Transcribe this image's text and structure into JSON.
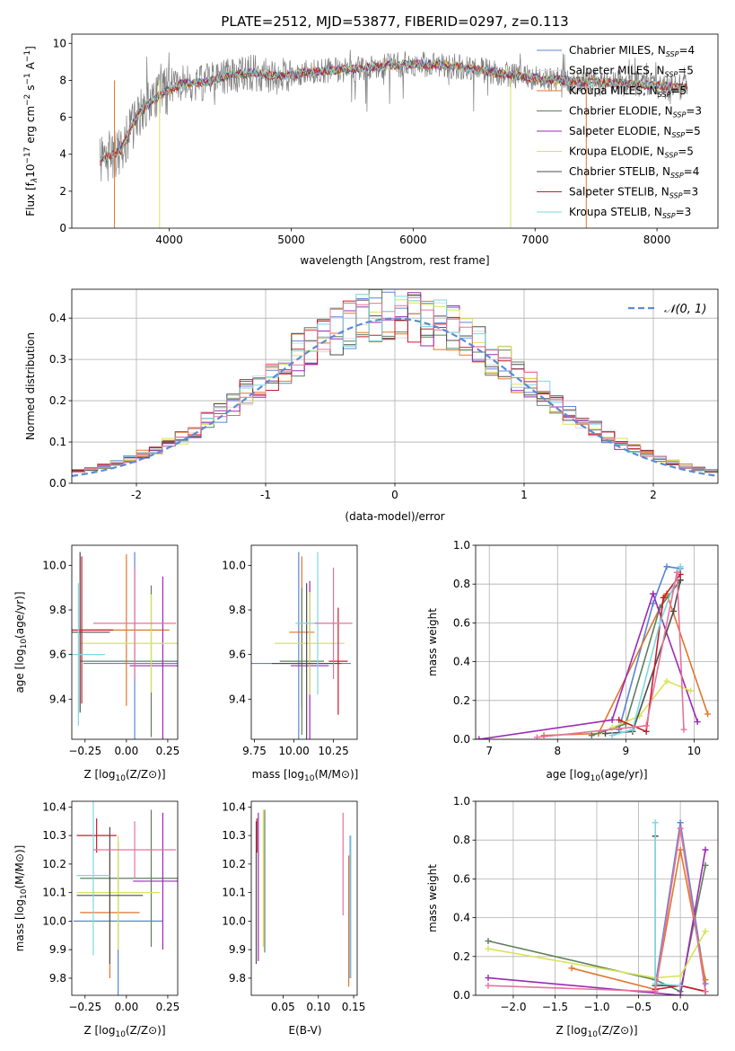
{
  "colors": {
    "Chabrier MILES": "#5b84d6",
    "Salpeter MILES": "#dcdcdc",
    "Kroupa MILES": "#e0772d",
    "Chabrier ELODIE": "#5f7f5f",
    "Salpeter ELODIE": "#9b2ab4",
    "Kroupa ELODIE": "#d8e35c",
    "Chabrier STELIB": "#4d4d4d",
    "Salpeter STELIB": "#c71c2a",
    "Kroupa STELIB": "#7fd7df",
    "pink": "#e5749a",
    "gauss": "#5b8bd6"
  },
  "chart_data": [
    {
      "type": "line",
      "title": "PLATE=2512, MJD=53877, FIBERID=0297, z=0.113",
      "xlabel": "wavelength [Angstrom, rest frame]",
      "ylabel": "Flux [f_λ 10^-17 erg cm^-2 s^-1 A^-1]",
      "ylabel_parts": {
        "a": "Flux [f",
        "b": "λ",
        "c": "10",
        "d": "−17",
        "e": " erg cm",
        "f": "−2",
        "g": " s",
        "h": "−1",
        "i": " A",
        "j": "−1",
        "k": "]"
      },
      "xlim": [
        3200,
        8500
      ],
      "ylim": [
        0,
        10.5
      ],
      "xticks": [
        4000,
        5000,
        6000,
        7000,
        8000
      ],
      "yticks": [
        0,
        2,
        4,
        6,
        8,
        10
      ],
      "grid": false,
      "legend": "top-right",
      "legend_entries": [
        {
          "name": "Chabrier MILES, N",
          "n": "4"
        },
        {
          "name": "Salpeter MILES, N",
          "n": "5"
        },
        {
          "name": "Kroupa MILES, N",
          "n": "5"
        },
        {
          "name": "Chabrier ELODIE, N",
          "n": "3"
        },
        {
          "name": "Salpeter ELODIE, N",
          "n": "5"
        },
        {
          "name": "Kroupa ELODIE, N",
          "n": "5"
        },
        {
          "name": "Chabrier STELIB, N",
          "n": "4"
        },
        {
          "name": "Salpeter STELIB, N",
          "n": "3"
        },
        {
          "name": "Kroupa STELIB, N",
          "n": "3"
        }
      ],
      "ssp_sub": "SSP",
      "continuum_knots": [
        [
          3430,
          3.6
        ],
        [
          3600,
          4.2
        ],
        [
          3700,
          5.6
        ],
        [
          3800,
          6.6
        ],
        [
          3950,
          7.3
        ],
        [
          4100,
          7.8
        ],
        [
          4300,
          7.9
        ],
        [
          4500,
          8.3
        ],
        [
          4700,
          8.4
        ],
        [
          4900,
          8.2
        ],
        [
          5200,
          8.5
        ],
        [
          5500,
          8.6
        ],
        [
          5800,
          8.8
        ],
        [
          6000,
          8.9
        ],
        [
          6300,
          8.8
        ],
        [
          6600,
          8.5
        ],
        [
          6900,
          8.2
        ],
        [
          7200,
          8.0
        ],
        [
          7500,
          7.9
        ],
        [
          7800,
          7.8
        ],
        [
          8000,
          7.7
        ],
        [
          8250,
          7.6
        ]
      ]
    },
    {
      "type": "line",
      "xlabel": "(data-model)/error",
      "ylabel": "Normed distribution",
      "xlim": [
        -2.5,
        2.5
      ],
      "ylim": [
        0,
        0.47
      ],
      "xticks": [
        -2,
        -1,
        0,
        1,
        2
      ],
      "yticks": [
        0.0,
        0.1,
        0.2,
        0.3,
        0.4
      ],
      "grid": true,
      "legend": "top-right",
      "legend_entry": "𝒩(0, 1)",
      "bin_width": 0.1
    },
    {
      "type": "scatter",
      "xlabel": "Z [log10(Z/Z⊙)]",
      "ylabel": "age [log10(age/yr)]",
      "xlim": [
        -0.33,
        0.31
      ],
      "ylim": [
        9.22,
        10.09
      ],
      "xticks": [
        -0.25,
        0.0,
        0.25
      ],
      "xticklabels": [
        "−0.25",
        "0.00",
        "0.25"
      ],
      "yticks": [
        9.4,
        9.6,
        9.8,
        10.0
      ],
      "points": [
        {
          "model": "Chabrier MILES",
          "x": 0.05,
          "y": 9.56,
          "xerr": 0.31,
          "yerr": 0.5
        },
        {
          "model": "Kroupa MILES",
          "x": 0.0,
          "y": 9.71,
          "xerr": 0.26,
          "yerr": 0.34
        },
        {
          "model": "Chabrier ELODIE",
          "x": 0.15,
          "y": 9.57,
          "xerr": 0.43,
          "yerr": 0.34
        },
        {
          "model": "Salpeter ELODIE",
          "x": 0.22,
          "y": 9.55,
          "xerr": 0.2,
          "yerr": 0.4
        },
        {
          "model": "Kroupa ELODIE",
          "x": 0.15,
          "y": 9.65,
          "xerr": 0.43,
          "yerr": 0.22
        },
        {
          "model": "Chabrier STELIB",
          "x": -0.28,
          "y": 9.7,
          "xerr": 0.18,
          "yerr": 0.36
        },
        {
          "model": "Salpeter STELIB",
          "x": -0.27,
          "y": 9.71,
          "xerr": 0.19,
          "yerr": 0.33
        },
        {
          "model": "Kroupa STELIB",
          "x": -0.29,
          "y": 9.6,
          "xerr": 0.16,
          "yerr": 0.32
        },
        {
          "model": "pink",
          "x": 0.05,
          "y": 9.74,
          "xerr": 0.25,
          "yerr": 0.25
        }
      ]
    },
    {
      "type": "scatter",
      "xlabel": "mass [log10(M/M⊙)]",
      "xlim": [
        9.73,
        10.4
      ],
      "ylim": [
        9.22,
        10.09
      ],
      "xticks": [
        9.75,
        10.0,
        10.25
      ],
      "xticklabels": [
        "9.75",
        "10.00",
        "10.25"
      ],
      "yticks": [
        9.4,
        9.6,
        9.8,
        10.0
      ],
      "points": [
        {
          "model": "Chabrier MILES",
          "x": 10.03,
          "y": 9.56,
          "xerr": 0.33,
          "yerr": 0.5
        },
        {
          "model": "Kroupa MILES",
          "x": 10.05,
          "y": 9.7,
          "xerr": 0.08,
          "yerr": 0.34
        },
        {
          "model": "Chabrier ELODIE",
          "x": 10.05,
          "y": 9.57,
          "xerr": 0.14,
          "yerr": 0.33
        },
        {
          "model": "Salpeter ELODIE",
          "x": 10.1,
          "y": 9.55,
          "xerr": 0.12,
          "yerr": 0.38
        },
        {
          "model": "Kroupa ELODIE",
          "x": 10.1,
          "y": 9.65,
          "xerr": 0.22,
          "yerr": 0.23
        },
        {
          "model": "Chabrier STELIB",
          "x": 10.08,
          "y": 9.56,
          "xerr": 0.22,
          "yerr": 0.36
        },
        {
          "model": "Salpeter STELIB",
          "x": 10.28,
          "y": 9.57,
          "xerr": 0.06,
          "yerr": 0.24
        },
        {
          "model": "Kroupa STELIB",
          "x": 10.15,
          "y": 9.74,
          "xerr": 0.14,
          "yerr": 0.32
        },
        {
          "model": "pink",
          "x": 10.25,
          "y": 9.74,
          "xerr": 0.12,
          "yerr": 0.25
        }
      ]
    },
    {
      "type": "line",
      "xlabel": "age [log10(age/yr)]",
      "ylabel": "mass weight",
      "xlim": [
        6.8,
        10.35
      ],
      "ylim": [
        0,
        1.0
      ],
      "xticks": [
        7,
        8,
        9,
        10
      ],
      "yticks": [
        0.0,
        0.2,
        0.4,
        0.6,
        0.8,
        1.0
      ],
      "grid": true,
      "series": [
        {
          "model": "Chabrier MILES",
          "x": [
            8.9,
            9.4,
            9.6,
            9.8
          ],
          "y": [
            0.05,
            0.7,
            0.89,
            0.88
          ]
        },
        {
          "model": "Kroupa MILES",
          "x": [
            7.8,
            8.6,
            9.6,
            10.2
          ],
          "y": [
            0.02,
            0.03,
            0.75,
            0.13
          ]
        },
        {
          "model": "Chabrier ELODIE",
          "x": [
            8.5,
            9.0,
            9.5,
            9.8
          ],
          "y": [
            0.02,
            0.08,
            0.68,
            0.82
          ]
        },
        {
          "model": "Salpeter ELODIE",
          "x": [
            6.85,
            8.8,
            9.4,
            10.05
          ],
          "y": [
            0.0,
            0.1,
            0.75,
            0.09
          ]
        },
        {
          "model": "Kroupa ELODIE",
          "x": [
            8.8,
            9.2,
            9.6,
            9.95
          ],
          "y": [
            0.06,
            0.12,
            0.3,
            0.25
          ]
        },
        {
          "model": "Chabrier STELIB",
          "x": [
            8.7,
            9.1,
            9.7,
            9.8
          ],
          "y": [
            0.03,
            0.04,
            0.66,
            0.82
          ]
        },
        {
          "model": "Salpeter STELIB",
          "x": [
            8.9,
            9.3,
            9.55,
            9.8
          ],
          "y": [
            0.1,
            0.04,
            0.73,
            0.85
          ]
        },
        {
          "model": "Kroupa STELIB",
          "x": [
            8.8,
            9.1,
            9.5,
            9.8
          ],
          "y": [
            0.02,
            0.05,
            0.6,
            0.89
          ]
        },
        {
          "model": "pink",
          "x": [
            7.7,
            9.3,
            9.75,
            9.85
          ],
          "y": [
            0.01,
            0.07,
            0.86,
            0.05
          ]
        }
      ]
    },
    {
      "type": "scatter",
      "xlabel": "Z [log10(Z/Z⊙)]",
      "ylabel": "mass [log10(M/M⊙)]",
      "xlim": [
        -0.33,
        0.31
      ],
      "ylim": [
        9.74,
        10.42
      ],
      "xticks": [
        -0.25,
        0.0,
        0.25
      ],
      "xticklabels": [
        "−0.25",
        "0.00",
        "0.25"
      ],
      "yticks": [
        9.8,
        9.9,
        10.0,
        10.1,
        10.2,
        10.3,
        10.4
      ],
      "points": [
        {
          "model": "Chabrier MILES",
          "x": -0.05,
          "y": 10.0,
          "xerr": 0.27,
          "yerr": 0.28
        },
        {
          "model": "Kroupa MILES",
          "x": -0.1,
          "y": 10.03,
          "xerr": 0.18,
          "yerr": 0.23
        },
        {
          "model": "Chabrier ELODIE",
          "x": 0.15,
          "y": 10.15,
          "xerr": 0.43,
          "yerr": 0.24
        },
        {
          "model": "Salpeter ELODIE",
          "x": 0.22,
          "y": 10.14,
          "xerr": 0.18,
          "yerr": 0.24
        },
        {
          "model": "Kroupa ELODIE",
          "x": -0.05,
          "y": 10.1,
          "xerr": 0.25,
          "yerr": 0.2
        },
        {
          "model": "Chabrier STELIB",
          "x": -0.1,
          "y": 10.09,
          "xerr": 0.2,
          "yerr": 0.24
        },
        {
          "model": "Salpeter STELIB",
          "x": -0.18,
          "y": 10.3,
          "xerr": 0.12,
          "yerr": 0.06
        },
        {
          "model": "Kroupa STELIB",
          "x": -0.2,
          "y": 10.16,
          "xerr": 0.1,
          "yerr": 0.28
        },
        {
          "model": "pink",
          "x": 0.05,
          "y": 10.25,
          "xerr": 0.25,
          "yerr": 0.1
        }
      ]
    },
    {
      "type": "scatter",
      "xlabel": "E(B-V)",
      "xlim": [
        0.005,
        0.155
      ],
      "ylim": [
        9.74,
        10.42
      ],
      "xticks": [
        0.05,
        0.1,
        0.15
      ],
      "xticklabels": [
        "0.05",
        "0.10",
        "0.15"
      ],
      "yticks": [
        9.8,
        9.9,
        10.0,
        10.1,
        10.2,
        10.3,
        10.4
      ],
      "points": [
        {
          "model": "Chabrier MILES",
          "x": 0.145,
          "y": 10.05,
          "yerr": 0.25
        },
        {
          "model": "Kroupa MILES",
          "x": 0.143,
          "y": 10.0,
          "yerr": 0.23
        },
        {
          "model": "Chabrier ELODIE",
          "x": 0.024,
          "y": 10.14,
          "yerr": 0.25
        },
        {
          "model": "Salpeter ELODIE",
          "x": 0.015,
          "y": 10.12,
          "yerr": 0.26
        },
        {
          "model": "Kroupa ELODIE",
          "x": 0.022,
          "y": 10.15,
          "yerr": 0.24
        },
        {
          "model": "Chabrier STELIB",
          "x": 0.012,
          "y": 10.1,
          "yerr": 0.25
        },
        {
          "model": "Salpeter STELIB",
          "x": 0.013,
          "y": 10.3,
          "yerr": 0.06
        },
        {
          "model": "Kroupa STELIB",
          "x": 0.146,
          "y": 10.05,
          "yerr": 0.25
        },
        {
          "model": "pink",
          "x": 0.135,
          "y": 10.2,
          "yerr": 0.18
        }
      ]
    },
    {
      "type": "line",
      "xlabel": "Z [log10(Z/Z⊙)]",
      "ylabel": "mass weight",
      "xlim": [
        -2.45,
        0.45
      ],
      "ylim": [
        0,
        1.0
      ],
      "xticks": [
        -2.0,
        -1.5,
        -1.0,
        -0.5,
        0.0
      ],
      "xticklabels": [
        "−2.0",
        "−1.5",
        "−1.0",
        "−0.5",
        "0.0"
      ],
      "yticks": [
        0.0,
        0.2,
        0.4,
        0.6,
        0.8,
        1.0
      ],
      "grid": true,
      "series": [
        {
          "model": "Chabrier MILES",
          "x": [
            -0.3,
            0.0,
            0.3
          ],
          "y": [
            0.05,
            0.89,
            0.06
          ]
        },
        {
          "model": "Kroupa MILES",
          "x": [
            -1.3,
            -0.3,
            0.0,
            0.3
          ],
          "y": [
            0.14,
            0.03,
            0.75,
            0.08
          ]
        },
        {
          "model": "Chabrier ELODIE",
          "x": [
            -2.3,
            -0.3,
            0.0,
            0.3
          ],
          "y": [
            0.28,
            0.08,
            0.02,
            0.67
          ]
        },
        {
          "model": "Salpeter ELODIE",
          "x": [
            -2.3,
            0.0,
            0.3
          ],
          "y": [
            0.09,
            0.0,
            0.75
          ]
        },
        {
          "model": "Kroupa ELODIE",
          "x": [
            -2.3,
            -0.3,
            0.0,
            0.3
          ],
          "y": [
            0.24,
            0.09,
            0.1,
            0.33
          ]
        },
        {
          "model": "Chabrier STELIB",
          "x": [
            -0.3,
            -0.3,
            0.0,
            0.3
          ],
          "y": [
            0.82,
            0.05,
            0.05,
            0.02
          ]
        },
        {
          "model": "Salpeter STELIB",
          "x": [
            -0.3,
            0.0,
            0.3
          ],
          "y": [
            0.03,
            0.05,
            0.02
          ]
        },
        {
          "model": "Kroupa STELIB",
          "x": [
            -0.3,
            -0.3,
            0.0
          ],
          "y": [
            0.89,
            0.06,
            0.05
          ]
        },
        {
          "model": "pink",
          "x": [
            -2.3,
            -0.3,
            0.0,
            0.3
          ],
          "y": [
            0.05,
            0.02,
            0.86,
            0.02
          ]
        }
      ]
    }
  ]
}
